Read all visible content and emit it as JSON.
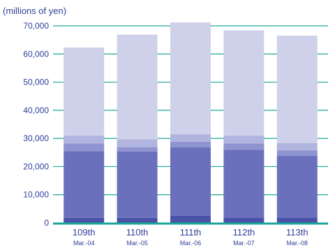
{
  "chart_data": {
    "type": "bar",
    "stacked": true,
    "ylabel": "(millions of yen)",
    "ylim": [
      0,
      70000
    ],
    "yticks": [
      "0",
      "10,000",
      "20,000",
      "30,000",
      "40,000",
      "50,000",
      "60,000",
      "70,000"
    ],
    "ytick_values": [
      0,
      10000,
      20000,
      30000,
      40000,
      50000,
      60000,
      70000
    ],
    "grid": true,
    "legend": "none",
    "categories": [
      "109th",
      "110th",
      "111th",
      "112th",
      "113th"
    ],
    "subcategories": [
      "Mar.-04",
      "Mar.-05",
      "Mar.-06",
      "Mar.-07",
      "Mar.-08"
    ],
    "series": [
      {
        "color": "#4a52a8",
        "values": [
          1800,
          1800,
          2500,
          1900,
          1900
        ]
      },
      {
        "color": "#6a70bc",
        "values": [
          23700,
          23500,
          24300,
          24100,
          21900
        ]
      },
      {
        "color": "#8f93cf",
        "values": [
          2700,
          1600,
          2000,
          2200,
          1900
        ]
      },
      {
        "color": "#b1b4de",
        "values": [
          2800,
          2800,
          2700,
          2800,
          2600
        ]
      },
      {
        "color": "#cfd0ea",
        "values": [
          31300,
          37200,
          39700,
          37400,
          38200
        ]
      }
    ],
    "colors": {
      "axis_text": "#2e3f99",
      "grid": "#1aa79a",
      "baseline": "#1aa79a"
    }
  }
}
